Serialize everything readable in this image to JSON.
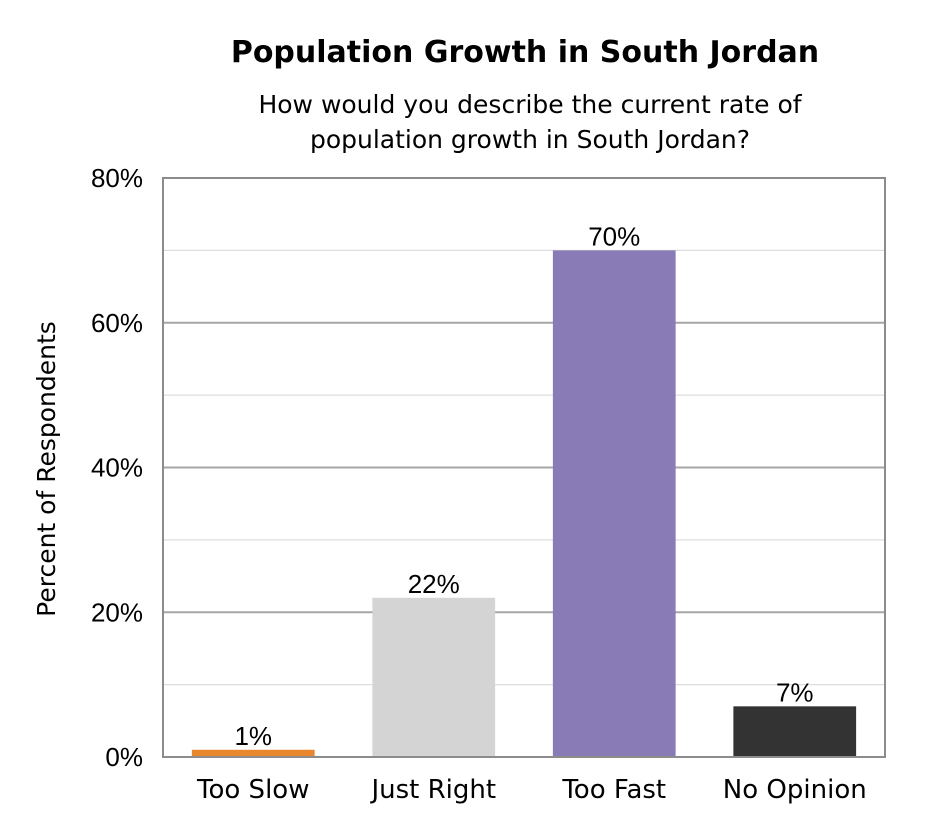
{
  "chart_data": {
    "type": "bar",
    "title": "Population Growth in South Jordan",
    "subtitle": [
      "How would you describe the current rate of",
      "population growth in South Jordan?"
    ],
    "xlabel": "",
    "ylabel": "Percent of Respondents",
    "categories": [
      "Too Slow",
      "Just Right",
      "Too Fast",
      "No Opinion"
    ],
    "values": [
      1,
      22,
      70,
      7
    ],
    "data_labels": [
      "1%",
      "22%",
      "70%",
      "7%"
    ],
    "colors": [
      "#e8872e",
      "#d4d4d4",
      "#897bb6",
      "#333333"
    ],
    "ylim": [
      0,
      80
    ],
    "yticks": [
      0,
      20,
      40,
      60,
      80
    ],
    "ytick_labels": [
      "0%",
      "20%",
      "40%",
      "60%",
      "80%"
    ],
    "minor_gridlines": [
      10,
      30,
      50,
      70
    ],
    "grid": true,
    "legend": "none"
  }
}
